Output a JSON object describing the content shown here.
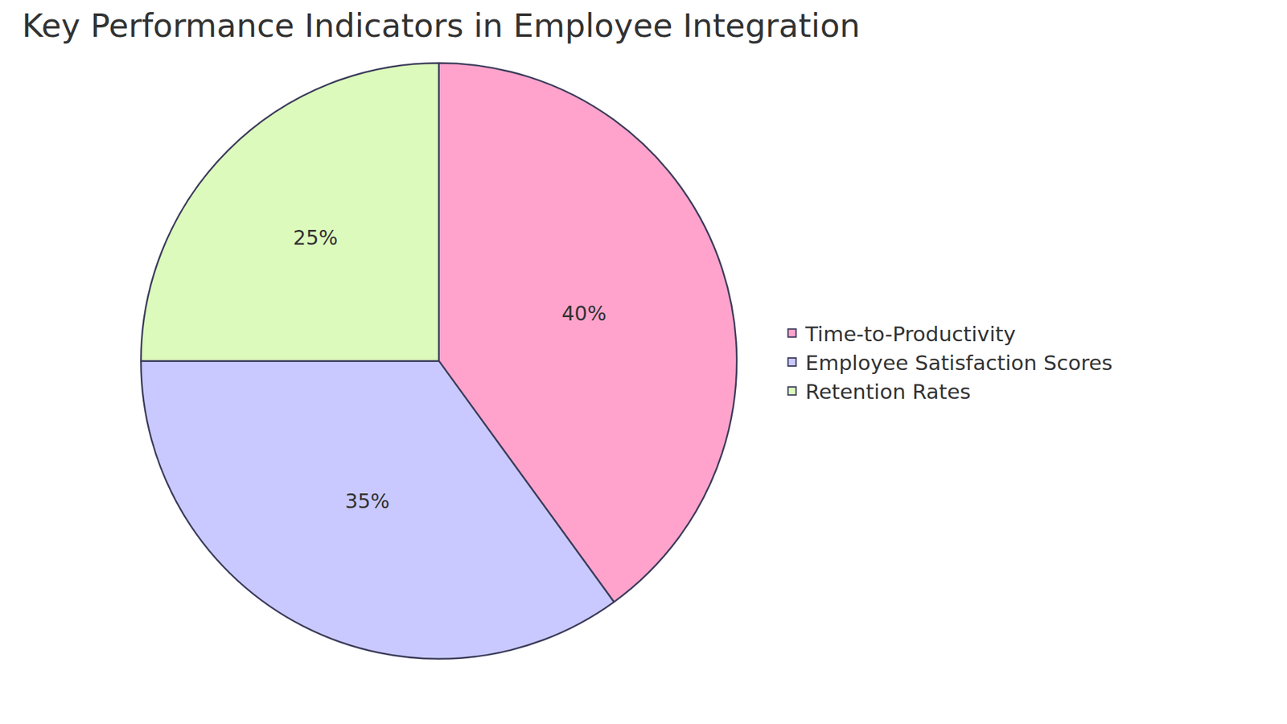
{
  "chart_data": {
    "type": "pie",
    "title": "Key Performance Indicators in Employee Integration",
    "categories": [
      "Time-to-Productivity",
      "Employee Satisfaction Scores",
      "Retention Rates"
    ],
    "values": [
      40,
      35,
      25
    ],
    "value_labels": [
      "40%",
      "35%",
      "25%"
    ],
    "colors": [
      "#ffa3cc",
      "#c9c9ff",
      "#dcfabc"
    ],
    "data_labels": true,
    "legend": "right"
  }
}
